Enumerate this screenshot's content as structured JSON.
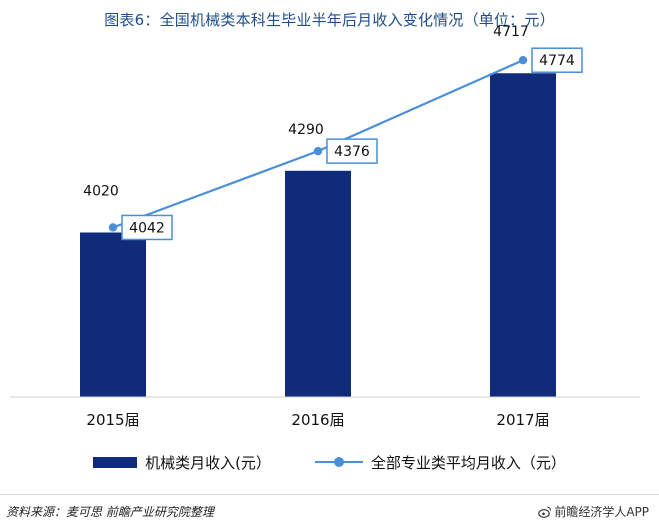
{
  "title": "图表6：全国机械类本科生毕业半年后月收入变化情况（单位：元）",
  "chart_data": {
    "type": "bar",
    "categories": [
      "2015届",
      "2016届",
      "2017届"
    ],
    "series": [
      {
        "name": "机械类月收入(元）",
        "kind": "bar",
        "values": [
          4020,
          4290,
          4717
        ],
        "color": "#0f2b7a"
      },
      {
        "name": "全部专业类平均月收入（元）",
        "kind": "line",
        "values": [
          4042,
          4376,
          4774
        ],
        "color": "#4a8fd8"
      }
    ],
    "ylim": [
      3300,
      4950
    ],
    "xlabel": "",
    "ylabel": "",
    "grid": false,
    "legend": "bottom"
  },
  "footer": {
    "source": "资料来源：麦可思  前瞻产业研究院整理",
    "brand": "前瞻经济学人APP"
  },
  "icons": {
    "brand_icon": "weibo-icon"
  }
}
